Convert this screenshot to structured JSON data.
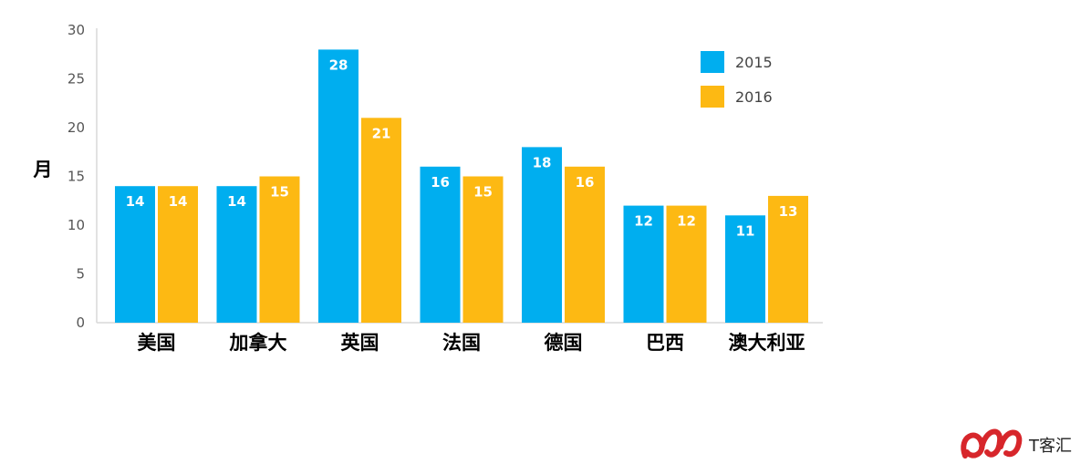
{
  "chart_data": {
    "type": "bar",
    "title": "",
    "xlabel": "",
    "ylabel": "月",
    "ylim": [
      0,
      30
    ],
    "yticks": [
      0,
      5,
      10,
      15,
      20,
      25,
      30
    ],
    "grid": false,
    "legend_position": "top-right",
    "categories": [
      "美国",
      "加拿大",
      "英国",
      "法国",
      "德国",
      "巴西",
      "澳大利亚"
    ],
    "series": [
      {
        "name": "2015",
        "color": "#00AEEF",
        "values": [
          14,
          14,
          28,
          16,
          18,
          12,
          11
        ]
      },
      {
        "name": "2016",
        "color": "#FDB913",
        "values": [
          14,
          15,
          21,
          15,
          16,
          12,
          13
        ]
      }
    ]
  },
  "logo": {
    "text": "T客汇",
    "mark_color": "#D7262B"
  }
}
